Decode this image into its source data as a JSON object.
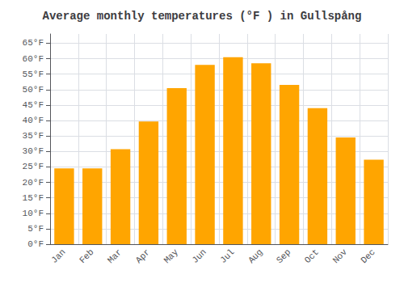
{
  "chart_data": {
    "type": "bar",
    "title": "Average monthly temperatures (°F ) in Gullspång",
    "categories": [
      "Jan",
      "Feb",
      "Mar",
      "Apr",
      "May",
      "Jun",
      "Jul",
      "Aug",
      "Sep",
      "Oct",
      "Nov",
      "Dec"
    ],
    "values": [
      24.5,
      24.5,
      30.7,
      39.7,
      50.5,
      58.0,
      60.5,
      58.5,
      51.5,
      44.0,
      34.5,
      27.3
    ],
    "color": "#FFA500",
    "ylim": [
      0,
      68
    ],
    "yticks": [
      {
        "value": 0,
        "label": "0°F"
      },
      {
        "value": 5,
        "label": "5°F"
      },
      {
        "value": 10,
        "label": "10°F"
      },
      {
        "value": 15,
        "label": "15°F"
      },
      {
        "value": 20,
        "label": "20°F"
      },
      {
        "value": 25,
        "label": "25°F"
      },
      {
        "value": 30,
        "label": "30°F"
      },
      {
        "value": 35,
        "label": "35°F"
      },
      {
        "value": 40,
        "label": "40°F"
      },
      {
        "value": 45,
        "label": "45°F"
      },
      {
        "value": 50,
        "label": "50°F"
      },
      {
        "value": 55,
        "label": "55°F"
      },
      {
        "value": 60,
        "label": "60°F"
      },
      {
        "value": 65,
        "label": "65°F"
      }
    ],
    "grid": true
  }
}
